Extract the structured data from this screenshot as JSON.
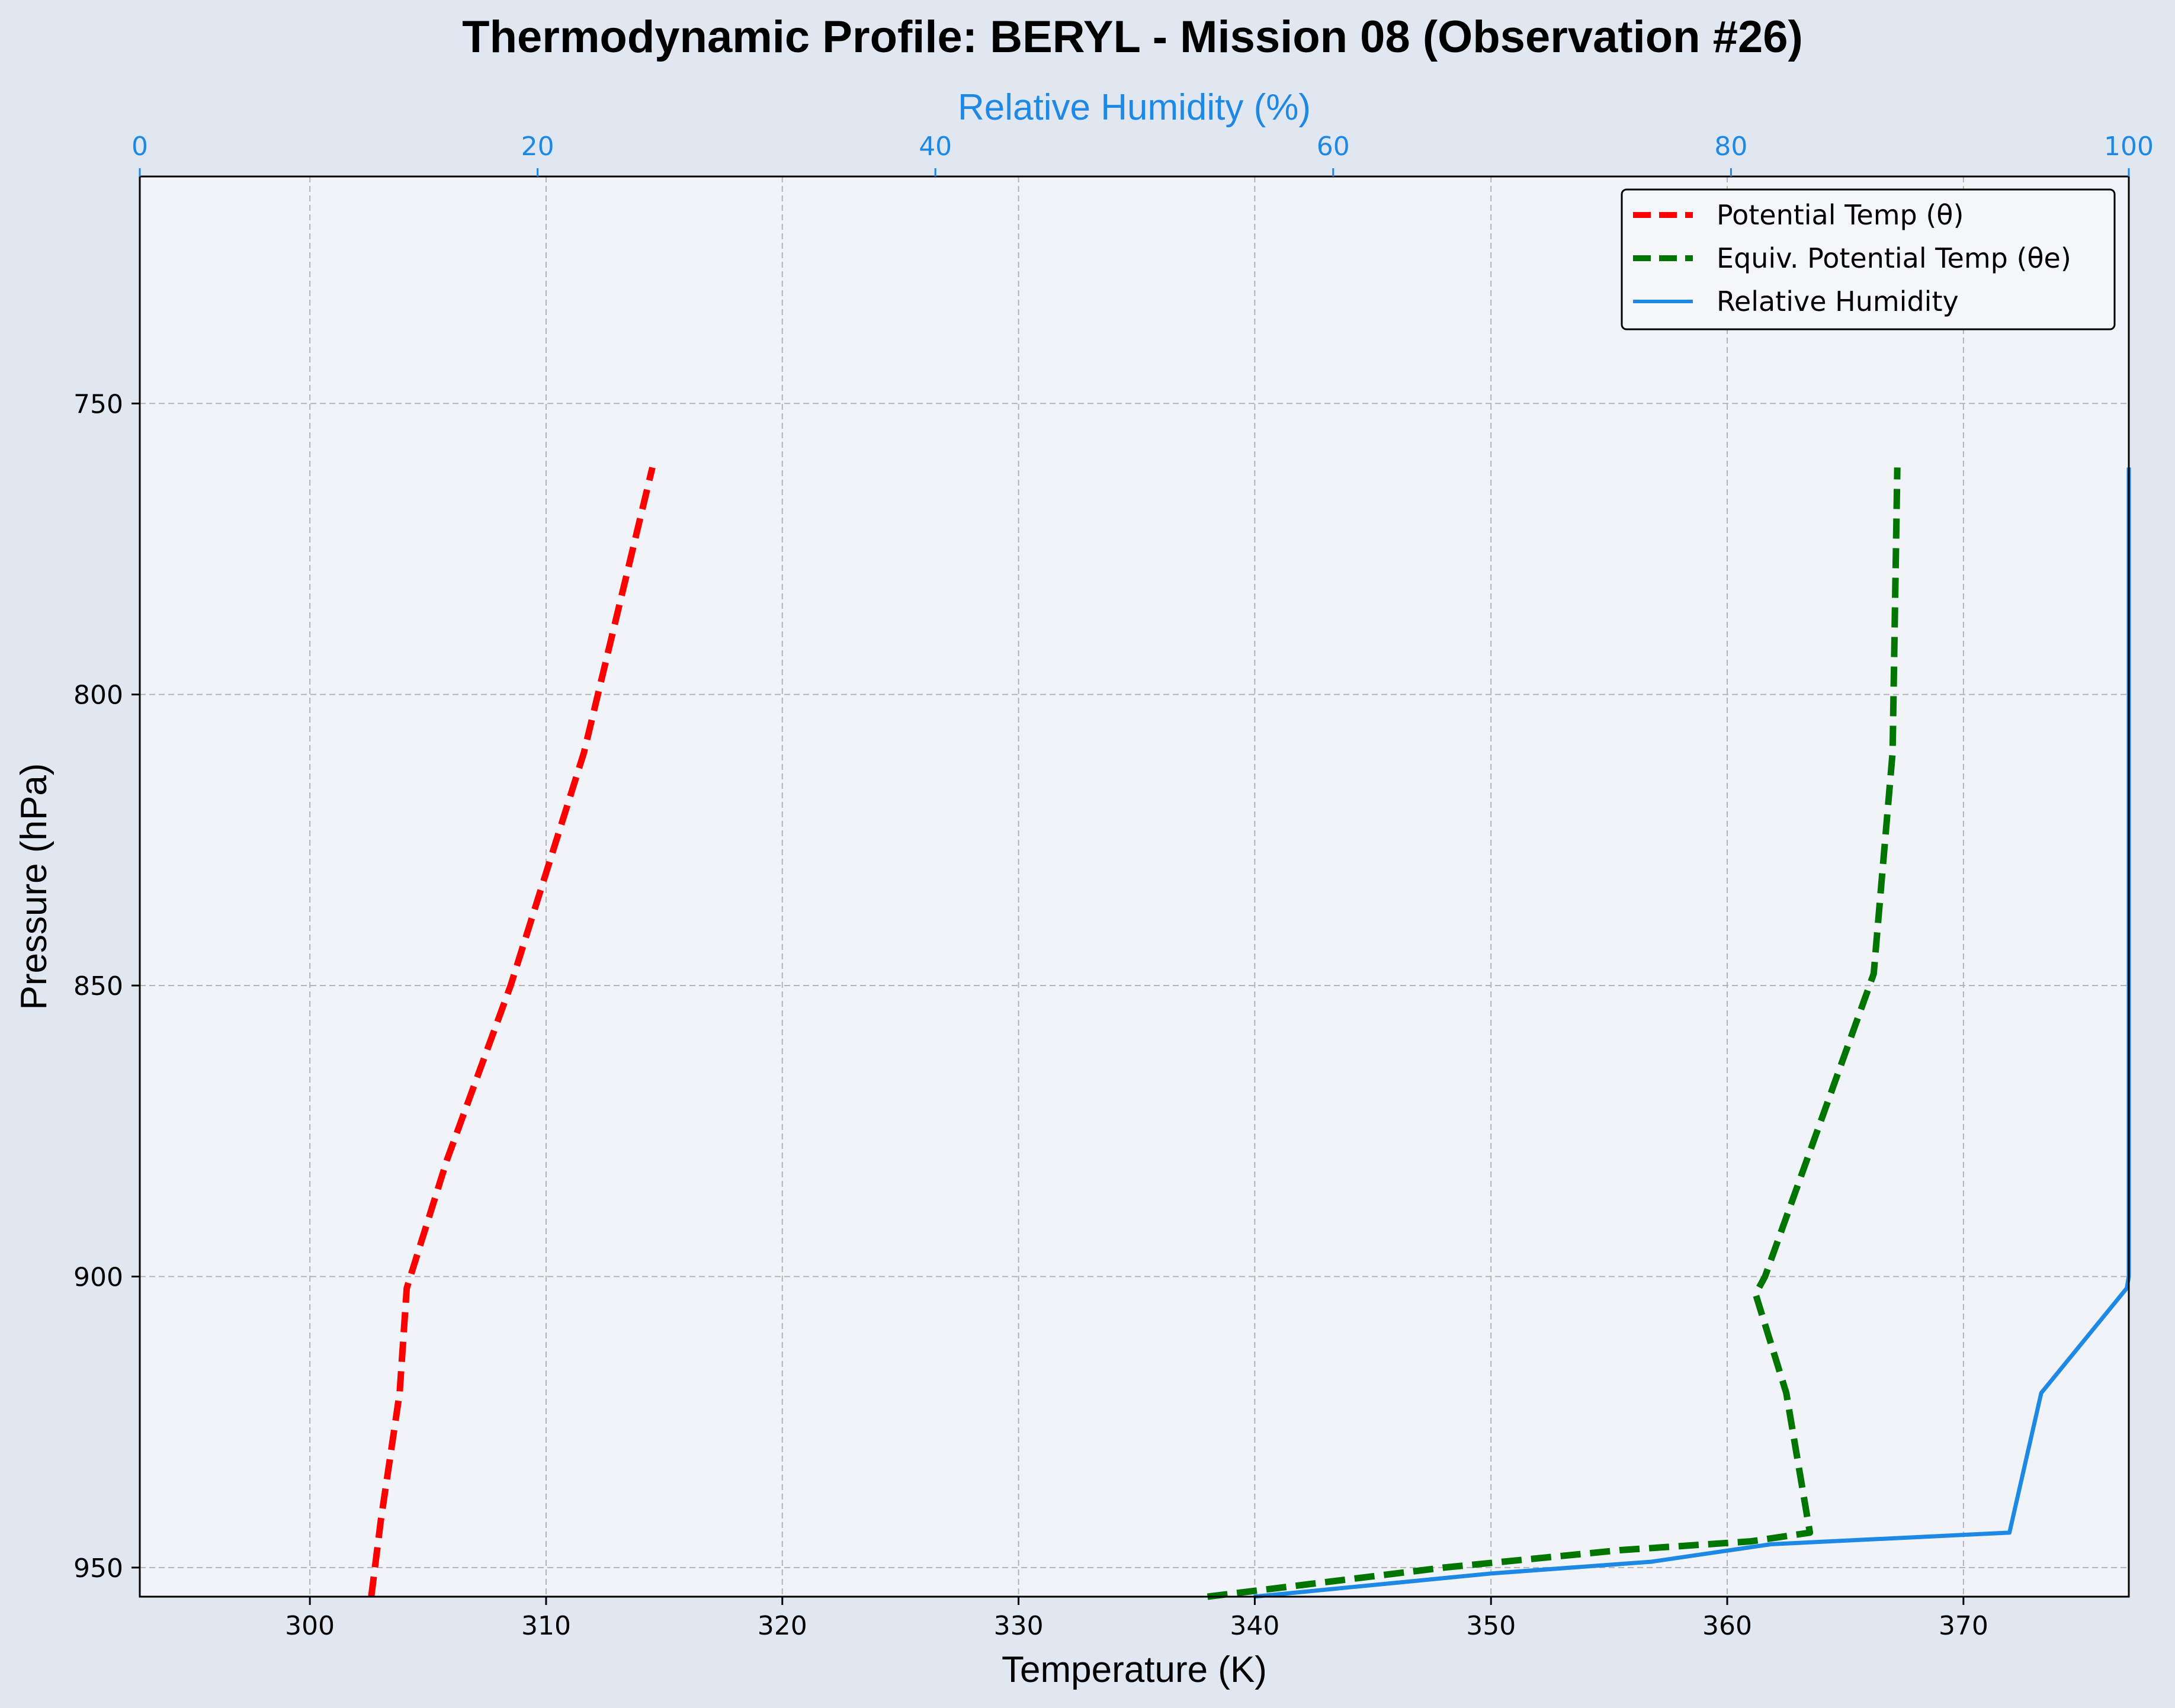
{
  "title": "Thermodynamic Profile:  BERYL - Mission 08 (Observation #26)",
  "colors": {
    "background": "#e1e7f1",
    "plot_background": "#f0f4f9",
    "theta": "#ff0000",
    "theta_e": "#007500",
    "rh": "#1e88e5",
    "grid": "#b4b4b4"
  },
  "chart_data": {
    "type": "line",
    "title": "Thermodynamic Profile:  BERYL - Mission 08 (Observation #26)",
    "xlabel": "Temperature (K)",
    "ylabel": "Pressure (hPa)",
    "x2label": "Relative Humidity (%)",
    "xlim": [
      292.8,
      377
    ],
    "ylim": [
      955,
      711
    ],
    "x2lim": [
      0,
      100
    ],
    "x_ticks": [
      300,
      310,
      320,
      330,
      340,
      350,
      360,
      370
    ],
    "y_ticks": [
      750,
      800,
      850,
      900,
      950
    ],
    "x2_ticks": [
      0,
      20,
      40,
      60,
      80,
      100
    ],
    "grid": true,
    "legend_position": "top-right",
    "series": [
      {
        "name": "Potential Temp (θ)",
        "axis": "temperature",
        "style": "dashed",
        "color": "#ff0000",
        "points": [
          [
            302.6,
            955
          ],
          [
            303.0,
            942
          ],
          [
            303.8,
            920
          ],
          [
            304.1,
            902
          ],
          [
            305.8,
            880
          ],
          [
            308.5,
            850
          ],
          [
            311.6,
            810
          ],
          [
            314.5,
            761
          ]
        ]
      },
      {
        "name": "Equiv. Potential Temp (θe)",
        "axis": "temperature",
        "style": "dashed",
        "color": "#007500",
        "points": [
          [
            338.0,
            955
          ],
          [
            348.0,
            950
          ],
          [
            355.5,
            947
          ],
          [
            361.0,
            945.5
          ],
          [
            363.5,
            944
          ],
          [
            362.5,
            920
          ],
          [
            361.2,
            903
          ],
          [
            361.6,
            900
          ],
          [
            366.2,
            848
          ],
          [
            367.0,
            810
          ],
          [
            367.2,
            761
          ]
        ]
      },
      {
        "name": "Relative Humidity",
        "axis": "rh",
        "style": "solid",
        "color": "#1e88e5",
        "points": [
          [
            56.0,
            955
          ],
          [
            68.0,
            951
          ],
          [
            76.0,
            949
          ],
          [
            82.0,
            946
          ],
          [
            94.0,
            944
          ],
          [
            95.6,
            920
          ],
          [
            99.9,
            902
          ],
          [
            100.0,
            900
          ],
          [
            100.0,
            761
          ]
        ]
      }
    ]
  }
}
